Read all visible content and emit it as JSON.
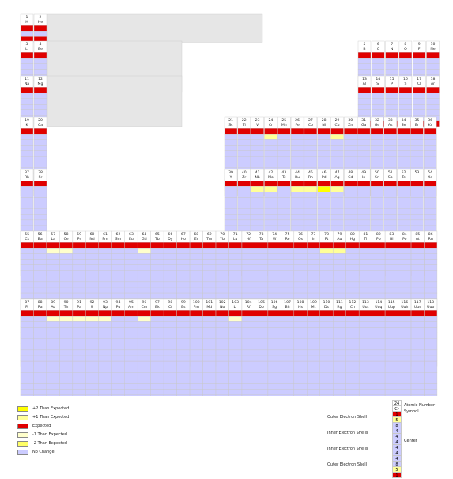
{
  "colors": {
    "plus2": "#ffff00",
    "plus1": "#ffff99",
    "minus1": "#ffffcc",
    "minus2": "#ffff66",
    "expected": "#e00000",
    "nochange": "#ccccff",
    "grid": "#c8c8c8",
    "header": "#ffffff",
    "gap": "#e6e6e6"
  },
  "legend": [
    {
      "label": "+2 Than Expected",
      "color": "#ffff00"
    },
    {
      "label": "+1 Than Expected",
      "color": "#ffff99"
    },
    {
      "label": "Expected",
      "color": "#e00000"
    },
    {
      "label": "-1 Than Expected",
      "color": "#ffffcc"
    },
    {
      "label": "-2 Than Expected",
      "color": "#ffff66"
    },
    {
      "label": "No Change",
      "color": "#ccccff"
    }
  ],
  "key": {
    "atomic_number_label": "Atomic Number",
    "symbol_label": "Symbol",
    "outer_shell_label": "Outer Electron Shell",
    "inner_shells_label": "Inner Electron Shells",
    "inner_shells_label2": "Inner Electron Shells",
    "outer_shell_label2": "Outer Electron Shell",
    "center_label": "Center",
    "sample_number": "24",
    "sample_symbol": "Cr",
    "sample_values": [
      "1",
      "5",
      "8",
      "4",
      "4",
      "4",
      "4",
      "4",
      "4",
      "8",
      "5",
      "1"
    ]
  },
  "chart_data": {
    "type": "table",
    "title": "",
    "periods": [
      {
        "period": 1,
        "elements": [
          [
            "1",
            "H"
          ],
          [
            "2",
            "He"
          ]
        ]
      },
      {
        "period": 2,
        "elements": [
          [
            "3",
            "Li"
          ],
          [
            "4",
            "Be"
          ],
          [
            "5",
            "B"
          ],
          [
            "6",
            "C"
          ],
          [
            "7",
            "N"
          ],
          [
            "8",
            "O"
          ],
          [
            "9",
            "F"
          ],
          [
            "10",
            "Ne"
          ]
        ]
      },
      {
        "period": 3,
        "elements": [
          [
            "11",
            "Na"
          ],
          [
            "12",
            "Mg"
          ],
          [
            "13",
            "Al"
          ],
          [
            "14",
            "Si"
          ],
          [
            "15",
            "P"
          ],
          [
            "16",
            "S"
          ],
          [
            "17",
            "Cl"
          ],
          [
            "18",
            "Ar"
          ]
        ]
      },
      {
        "period": 4,
        "elements": [
          [
            "19",
            "K"
          ],
          [
            "20",
            "Ca"
          ],
          [
            "21",
            "Sc"
          ],
          [
            "22",
            "Ti"
          ],
          [
            "23",
            "V"
          ],
          [
            "24",
            "Cr"
          ],
          [
            "25",
            "Mn"
          ],
          [
            "26",
            "Fe"
          ],
          [
            "27",
            "Co"
          ],
          [
            "28",
            "Ni"
          ],
          [
            "29",
            "Cu"
          ],
          [
            "30",
            "Zn"
          ],
          [
            "31",
            "Ga"
          ],
          [
            "32",
            "Ge"
          ],
          [
            "33",
            "As"
          ],
          [
            "34",
            "Se"
          ],
          [
            "35",
            "Br"
          ],
          [
            "36",
            "Kr"
          ]
        ]
      },
      {
        "period": 5,
        "elements": [
          [
            "37",
            "Rb"
          ],
          [
            "38",
            "Sr"
          ],
          [
            "39",
            "Y"
          ],
          [
            "40",
            "Zr"
          ],
          [
            "41",
            "Nb"
          ],
          [
            "42",
            "Mo"
          ],
          [
            "43",
            "Tc"
          ],
          [
            "44",
            "Ru"
          ],
          [
            "45",
            "Rh"
          ],
          [
            "46",
            "Pd"
          ],
          [
            "47",
            "Ag"
          ],
          [
            "48",
            "Cd"
          ],
          [
            "49",
            "In"
          ],
          [
            "50",
            "Sn"
          ],
          [
            "51",
            "Sb"
          ],
          [
            "52",
            "Te"
          ],
          [
            "53",
            "I"
          ],
          [
            "54",
            "Xe"
          ]
        ]
      },
      {
        "period": 6,
        "elements": [
          [
            "55",
            "Cs"
          ],
          [
            "56",
            "Ba"
          ],
          [
            "57",
            "La"
          ],
          [
            "58",
            "Ce"
          ],
          [
            "59",
            "Pr"
          ],
          [
            "60",
            "Nd"
          ],
          [
            "61",
            "Pm"
          ],
          [
            "62",
            "Sm"
          ],
          [
            "63",
            "Eu"
          ],
          [
            "64",
            "Gd"
          ],
          [
            "65",
            "Tb"
          ],
          [
            "66",
            "Dy"
          ],
          [
            "67",
            "Ho"
          ],
          [
            "68",
            "Er"
          ],
          [
            "69",
            "Tm"
          ],
          [
            "70",
            "Yb"
          ],
          [
            "71",
            "Lu"
          ],
          [
            "72",
            "Hf"
          ],
          [
            "73",
            "Ta"
          ],
          [
            "74",
            "W"
          ],
          [
            "75",
            "Re"
          ],
          [
            "76",
            "Os"
          ],
          [
            "77",
            "Ir"
          ],
          [
            "78",
            "Pt"
          ],
          [
            "79",
            "Au"
          ],
          [
            "80",
            "Hg"
          ],
          [
            "81",
            "Tl"
          ],
          [
            "82",
            "Pb"
          ],
          [
            "83",
            "Bi"
          ],
          [
            "84",
            "Po"
          ],
          [
            "85",
            "At"
          ],
          [
            "86",
            "Rn"
          ]
        ]
      },
      {
        "period": 7,
        "elements": [
          [
            "87",
            "Fr"
          ],
          [
            "88",
            "Ra"
          ],
          [
            "89",
            "Ac"
          ],
          [
            "90",
            "Th"
          ],
          [
            "91",
            "Pa"
          ],
          [
            "92",
            "U"
          ],
          [
            "93",
            "Np"
          ],
          [
            "94",
            "Pu"
          ],
          [
            "95",
            "Am"
          ],
          [
            "96",
            "Cm"
          ],
          [
            "97",
            "Bk"
          ],
          [
            "98",
            "Cf"
          ],
          [
            "99",
            "Es"
          ],
          [
            "100",
            "Fm"
          ],
          [
            "101",
            "Md"
          ],
          [
            "102",
            "No"
          ],
          [
            "103",
            "Lr"
          ],
          [
            "104",
            "Rf"
          ],
          [
            "105",
            "Db"
          ],
          [
            "106",
            "Sg"
          ],
          [
            "107",
            "Bh"
          ],
          [
            "108",
            "Hs"
          ],
          [
            "109",
            "Mt"
          ],
          [
            "110",
            "Ds"
          ],
          [
            "111",
            "Rg"
          ],
          [
            "112",
            "Cn"
          ],
          [
            "113",
            "Uut"
          ],
          [
            "114",
            "Uuq"
          ],
          [
            "115",
            "Uup"
          ],
          [
            "116",
            "Uuh"
          ],
          [
            "117",
            "Uus"
          ],
          [
            "118",
            "Uuo"
          ]
        ]
      }
    ],
    "highlights": {
      "plus1": [
        "24",
        "29",
        "41",
        "42",
        "44",
        "45",
        "47",
        "78",
        "79"
      ],
      "plus2": [
        "46"
      ],
      "minus1": [
        "57",
        "58",
        "64",
        "89",
        "90",
        "91",
        "92",
        "93",
        "96",
        "103"
      ],
      "minus2": []
    }
  }
}
